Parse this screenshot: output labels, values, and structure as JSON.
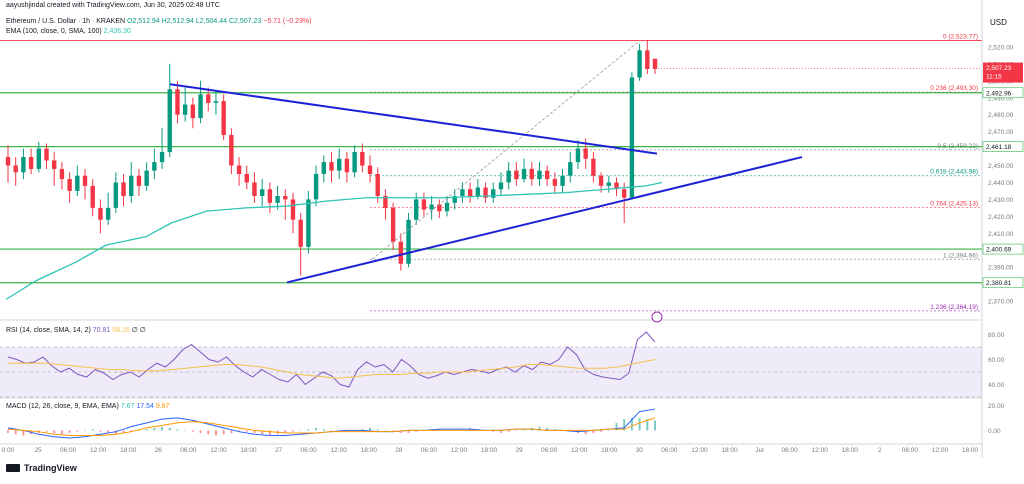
{
  "header": {
    "credit": "aayushjindal created with TradingView.com, Jun 30, 2025 02:48 UTC",
    "symbol": "Ethereum / U.S. Dollar · 1h · KRAKEN",
    "ohlc": "O2,512.94  H2,512.94  L2,504.44  C2,507.23",
    "change": "−5.71 (−0.23%)",
    "ema": "EMA (100, close, 0, SMA, 100)",
    "ema_value": "2,436.30",
    "currency": "USD"
  },
  "rsi_header": {
    "label": "RSI (14, close, SMA, 14, 2)",
    "v1": "70.81",
    "v2": "58.16",
    "v3": "∅  ∅"
  },
  "macd_header": {
    "label": "MACD (12, 26, close, 9, EMA, EMA)",
    "v1": "7.67",
    "v2": "17.54",
    "v3": "9.87"
  },
  "footer": {
    "brand": "TradingView"
  },
  "colors": {
    "up": "#089981",
    "down": "#f23645",
    "trend": "#1e22d6",
    "ema": "#2ec4b6",
    "sr": "#3cb54a",
    "rsi": "#7e57c2",
    "macd": "#2962ff",
    "signal": "#ff9800"
  },
  "chart_data": {
    "type": "candlestick",
    "ylim": [
      2360,
      2530
    ],
    "price_ticks": [
      "2,520.00",
      "2,510.00",
      "2,500.00",
      "2,490.00",
      "2,480.00",
      "2,470.00",
      "2,460.00",
      "2,450.00",
      "2,440.00",
      "2,430.00",
      "2,420.00",
      "2,410.00",
      "2,400.00",
      "2,390.00",
      "2,380.00",
      "2,370.00"
    ],
    "x_ticks": [
      "0:00",
      "25",
      "06:00",
      "12:00",
      "18:00",
      "26",
      "06:00",
      "12:00",
      "18:00",
      "27",
      "06:00",
      "12:00",
      "18:00",
      "28",
      "06:00",
      "12:00",
      "18:00",
      "29",
      "06:00",
      "12:00",
      "18:00",
      "30",
      "06:00",
      "12:00",
      "18:00",
      "Jul",
      "06:00",
      "12:00",
      "18:00",
      "2",
      "06:00",
      "12:00",
      "18:00"
    ],
    "support_resistance": [
      {
        "label": "2,461.18",
        "value": 2461.18
      },
      {
        "label": "2,492.96",
        "value": 2492.96
      },
      {
        "label": "2,400.69",
        "value": 2400.69
      },
      {
        "label": "2,380.81",
        "value": 2380.81
      }
    ],
    "fib_levels": [
      {
        "label": "0 (2,523.77)",
        "value": 2523.77,
        "color": "#f23645"
      },
      {
        "label": "0.236 (2,493.30)",
        "value": 2493.3,
        "color": "#f23645"
      },
      {
        "label": "0.5 (2,459.22)",
        "value": 2459.22,
        "color": "#787b86"
      },
      {
        "label": "0.618 (2,443.98)",
        "value": 2443.98,
        "color": "#089981"
      },
      {
        "label": "0.764 (2,425.13)",
        "value": 2425.13,
        "color": "#f23645"
      },
      {
        "label": "1 (2,394.66)",
        "value": 2394.66,
        "color": "#787b86"
      },
      {
        "label": "1.236 (2,364.19)",
        "value": 2364.19,
        "color": "#9c27b0"
      }
    ],
    "current_price": {
      "label": "2,507.23",
      "countdown": "11:15",
      "value": 2507.23
    },
    "candles": [
      [
        2455,
        2450,
        2462,
        2440
      ],
      [
        2450,
        2446,
        2455,
        2438
      ],
      [
        2446,
        2455,
        2460,
        2442
      ],
      [
        2455,
        2448,
        2460,
        2445
      ],
      [
        2448,
        2460,
        2464,
        2446
      ],
      [
        2460,
        2453,
        2463,
        2448
      ],
      [
        2453,
        2448,
        2458,
        2438
      ],
      [
        2448,
        2442,
        2452,
        2436
      ],
      [
        2442,
        2435,
        2446,
        2428
      ],
      [
        2435,
        2444,
        2450,
        2432
      ],
      [
        2444,
        2438,
        2448,
        2430
      ],
      [
        2438,
        2425,
        2442,
        2420
      ],
      [
        2425,
        2418,
        2430,
        2410
      ],
      [
        2418,
        2425,
        2434,
        2415
      ],
      [
        2425,
        2440,
        2446,
        2422
      ],
      [
        2440,
        2432,
        2445,
        2426
      ],
      [
        2432,
        2444,
        2452,
        2428
      ],
      [
        2444,
        2438,
        2448,
        2432
      ],
      [
        2438,
        2447,
        2452,
        2435
      ],
      [
        2447,
        2452,
        2460,
        2442
      ],
      [
        2452,
        2458,
        2472,
        2448
      ],
      [
        2458,
        2495,
        2510,
        2455
      ],
      [
        2495,
        2480,
        2500,
        2475
      ],
      [
        2480,
        2486,
        2496,
        2476
      ],
      [
        2486,
        2478,
        2490,
        2472
      ],
      [
        2478,
        2492,
        2500,
        2475
      ],
      [
        2492,
        2487,
        2496,
        2482
      ],
      [
        2487,
        2488,
        2494,
        2480
      ],
      [
        2488,
        2468,
        2492,
        2465
      ],
      [
        2468,
        2450,
        2472,
        2445
      ],
      [
        2450,
        2445,
        2455,
        2438
      ],
      [
        2445,
        2440,
        2450,
        2436
      ],
      [
        2440,
        2432,
        2446,
        2428
      ],
      [
        2432,
        2436,
        2442,
        2426
      ],
      [
        2436,
        2428,
        2440,
        2422
      ],
      [
        2428,
        2432,
        2438,
        2424
      ],
      [
        2432,
        2430,
        2436,
        2418
      ],
      [
        2430,
        2418,
        2434,
        2410
      ],
      [
        2418,
        2402,
        2422,
        2385
      ],
      [
        2402,
        2430,
        2435,
        2398
      ],
      [
        2430,
        2445,
        2450,
        2426
      ],
      [
        2445,
        2452,
        2456,
        2440
      ],
      [
        2452,
        2447,
        2458,
        2440
      ],
      [
        2447,
        2454,
        2460,
        2442
      ],
      [
        2454,
        2446,
        2458,
        2440
      ],
      [
        2446,
        2458,
        2462,
        2443
      ],
      [
        2458,
        2450,
        2463,
        2446
      ],
      [
        2450,
        2445,
        2456,
        2440
      ],
      [
        2445,
        2432,
        2449,
        2428
      ],
      [
        2432,
        2425,
        2436,
        2418
      ],
      [
        2425,
        2405,
        2428,
        2400
      ],
      [
        2405,
        2392,
        2410,
        2388
      ],
      [
        2392,
        2418,
        2422,
        2390
      ],
      [
        2418,
        2430,
        2434,
        2415
      ],
      [
        2430,
        2424,
        2434,
        2420
      ],
      [
        2424,
        2427,
        2432,
        2418
      ],
      [
        2427,
        2423,
        2430,
        2419
      ],
      [
        2423,
        2428,
        2432,
        2420
      ],
      [
        2428,
        2432,
        2436,
        2424
      ],
      [
        2432,
        2436,
        2440,
        2428
      ],
      [
        2436,
        2432,
        2440,
        2428
      ],
      [
        2432,
        2437,
        2442,
        2430
      ],
      [
        2437,
        2431,
        2440,
        2428
      ],
      [
        2431,
        2436,
        2440,
        2428
      ],
      [
        2436,
        2440,
        2446,
        2432
      ],
      [
        2440,
        2447,
        2452,
        2436
      ],
      [
        2447,
        2442,
        2452,
        2438
      ],
      [
        2442,
        2448,
        2454,
        2440
      ],
      [
        2448,
        2442,
        2452,
        2438
      ],
      [
        2442,
        2447,
        2452,
        2438
      ],
      [
        2447,
        2442,
        2450,
        2438
      ],
      [
        2442,
        2438,
        2446,
        2434
      ],
      [
        2438,
        2444,
        2448,
        2434
      ],
      [
        2444,
        2452,
        2458,
        2440
      ],
      [
        2452,
        2460,
        2465,
        2448
      ],
      [
        2460,
        2454,
        2466,
        2448
      ],
      [
        2454,
        2444,
        2458,
        2440
      ],
      [
        2444,
        2438,
        2446,
        2434
      ],
      [
        2438,
        2440,
        2444,
        2434
      ],
      [
        2440,
        2436,
        2443,
        2432
      ],
      [
        2436,
        2431,
        2440,
        2416
      ],
      [
        2431,
        2502,
        2505,
        2430
      ],
      [
        2502,
        2518,
        2522,
        2500
      ],
      [
        2518,
        2507,
        2524,
        2504
      ],
      [
        2513,
        2507,
        2513,
        2504
      ]
    ],
    "ema100": [
      [
        0,
        2371
      ],
      [
        30,
        2382
      ],
      [
        70,
        2393
      ],
      [
        100,
        2403
      ],
      [
        140,
        2408
      ],
      [
        165,
        2416
      ],
      [
        200,
        2423
      ],
      [
        240,
        2425
      ],
      [
        280,
        2426
      ],
      [
        320,
        2429
      ],
      [
        360,
        2431
      ],
      [
        400,
        2431
      ],
      [
        440,
        2431
      ],
      [
        480,
        2432
      ],
      [
        520,
        2433
      ],
      [
        560,
        2434
      ],
      [
        600,
        2436
      ],
      [
        640,
        2438
      ],
      [
        656,
        2440
      ]
    ],
    "rsi": {
      "ylim": [
        30,
        90
      ],
      "ticks": [
        "80.00",
        "60.00",
        "40.00"
      ],
      "rsi_line": [
        62,
        60,
        57,
        58,
        62,
        55,
        50,
        53,
        48,
        46,
        52,
        49,
        44,
        48,
        50,
        46,
        52,
        57,
        54,
        60,
        68,
        72,
        66,
        60,
        58,
        62,
        55,
        50,
        46,
        52,
        48,
        44,
        42,
        48,
        40,
        45,
        50,
        47,
        40,
        38,
        52,
        58,
        54,
        56,
        50,
        60,
        55,
        48,
        45,
        47,
        50,
        48,
        50,
        52,
        51,
        49,
        52,
        54,
        50,
        55,
        52,
        58,
        56,
        60,
        70,
        64,
        52,
        48,
        46,
        45,
        44,
        49,
        76,
        82,
        74
      ],
      "rsi_ma": [
        57,
        57,
        57,
        57,
        56,
        55,
        54,
        53,
        52,
        52,
        51,
        51,
        51,
        52,
        53,
        54,
        55,
        56,
        56,
        55,
        54,
        52,
        50,
        48,
        47,
        46,
        45,
        46,
        47,
        48,
        48,
        48,
        49,
        49,
        50,
        50,
        50,
        51,
        52,
        53,
        54,
        56,
        56,
        55,
        54,
        53,
        53,
        53,
        54,
        56,
        58,
        60
      ]
    },
    "macd": {
      "ylim": [
        -10,
        25
      ],
      "ticks": [
        "20.00",
        "0.00"
      ],
      "histogram": [
        -2,
        -3,
        -4,
        -3,
        -2,
        -1,
        -2,
        -3,
        -2,
        -1,
        0,
        1,
        -1,
        -2,
        -3,
        -2,
        -1,
        0,
        1,
        2,
        3,
        2,
        1,
        0,
        -1,
        -2,
        -3,
        -4,
        -3,
        -2,
        -1,
        -1,
        -2,
        -3,
        -4,
        -3,
        -2,
        -1,
        0,
        1,
        2,
        1,
        0,
        -1,
        -1,
        0,
        1,
        2,
        1,
        0,
        -1,
        -2,
        -2,
        -1,
        0,
        1,
        1,
        0,
        0,
        1,
        2,
        1,
        0,
        -1,
        -2,
        -1,
        0,
        1,
        2,
        3,
        2,
        1,
        0,
        -1,
        -2,
        -3,
        -2,
        -1,
        0,
        6,
        9,
        10,
        10,
        9,
        8
      ],
      "macd_line": [
        2,
        0,
        -3,
        -5,
        -6,
        -5,
        -3,
        -1,
        3,
        6,
        9,
        10,
        8,
        5,
        2,
        -1,
        -3,
        -4,
        -4,
        -3,
        -2,
        -1,
        0,
        0,
        -1,
        -1,
        0,
        0,
        1,
        1,
        1,
        0,
        0,
        1,
        1,
        0,
        0,
        -1,
        0,
        1,
        2,
        15,
        17
      ],
      "signal_line": [
        1,
        0,
        -1,
        -3,
        -4,
        -4,
        -4,
        -3,
        -1,
        2,
        4,
        6,
        7,
        6,
        4,
        2,
        0,
        -1,
        -2,
        -2,
        -2,
        -1,
        -1,
        -1,
        -1,
        -1,
        0,
        0,
        0,
        0,
        0,
        0,
        0,
        1,
        1,
        0,
        0,
        0,
        0,
        1,
        1,
        6,
        10
      ]
    }
  }
}
